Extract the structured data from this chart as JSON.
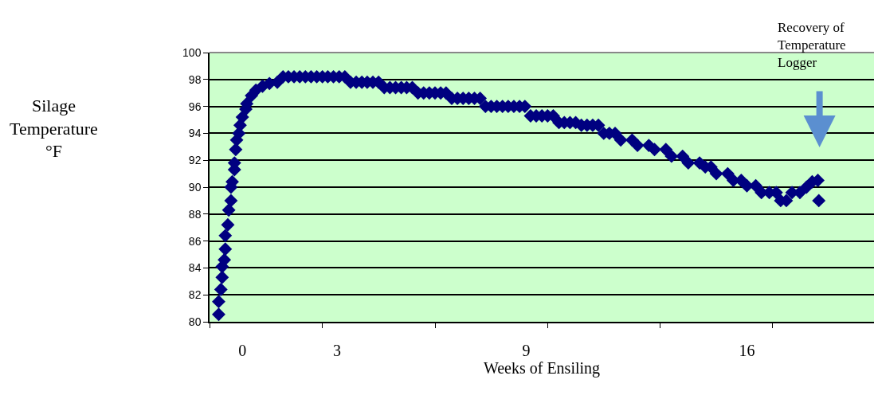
{
  "chart_data": {
    "type": "scatter",
    "xlabel": "Weeks of Ensiling",
    "ylabel": "Silage\nTemperature\n°F",
    "annotations": [
      "Recovery of\nTemperature\nLogger"
    ],
    "series": [
      {
        "color": "#000080",
        "x": [
          -0.75,
          -0.75,
          -0.68,
          -0.64,
          -0.64,
          -0.57,
          -0.54,
          -0.54,
          -0.46,
          -0.43,
          -0.36,
          -0.36,
          -0.32,
          -0.25,
          -0.25,
          -0.21,
          -0.18,
          -0.11,
          -0.07,
          0.0,
          0.11,
          0.14,
          0.29,
          0.43,
          0.64,
          0.86,
          1.11,
          1.29,
          1.46,
          1.64,
          1.82,
          2.0,
          2.18,
          2.36,
          2.54,
          2.71,
          2.89,
          3.07,
          3.25,
          3.43,
          3.61,
          3.79,
          3.96,
          4.14,
          4.32,
          4.5,
          4.68,
          4.86,
          5.04,
          5.21,
          5.39,
          5.57,
          5.75,
          5.93,
          6.11,
          6.29,
          6.46,
          6.64,
          6.82,
          7.0,
          7.18,
          7.36,
          7.54,
          7.71,
          7.89,
          8.07,
          8.25,
          8.43,
          8.61,
          8.79,
          8.96,
          9.14,
          9.32,
          9.5,
          9.68,
          9.86,
          10.04,
          10.21,
          10.39,
          10.57,
          10.75,
          10.93,
          11.11,
          11.29,
          11.46,
          11.64,
          11.82,
          12.0,
          12.36,
          12.53,
          12.89,
          13.07,
          13.43,
          13.61,
          13.96,
          14.14,
          14.5,
          14.68,
          14.86,
          15.03,
          15.39,
          15.57,
          15.82,
          16.0,
          16.28,
          16.46,
          16.71,
          16.93,
          17.07,
          17.25,
          17.43,
          17.68,
          17.89,
          18.07,
          18.25,
          18.28
        ],
        "values": [
          80.55,
          81.5,
          82.4,
          83.3,
          84.1,
          84.6,
          85.4,
          86.4,
          87.2,
          88.3,
          89.0,
          90.0,
          90.4,
          91.3,
          91.8,
          92.8,
          93.5,
          94.0,
          94.6,
          95.2,
          95.8,
          96.2,
          96.8,
          97.2,
          97.5,
          97.7,
          97.8,
          98.2,
          98.2,
          98.2,
          98.2,
          98.2,
          98.2,
          98.2,
          98.2,
          98.2,
          98.2,
          98.2,
          98.2,
          97.8,
          97.8,
          97.8,
          97.8,
          97.8,
          97.8,
          97.4,
          97.4,
          97.4,
          97.4,
          97.4,
          97.4,
          97.0,
          97.0,
          97.0,
          97.0,
          97.0,
          97.0,
          96.6,
          96.6,
          96.6,
          96.6,
          96.6,
          96.6,
          96.0,
          96.0,
          96.0,
          96.0,
          96.0,
          96.0,
          96.0,
          96.0,
          95.3,
          95.3,
          95.3,
          95.3,
          95.3,
          94.8,
          94.8,
          94.8,
          94.8,
          94.6,
          94.6,
          94.6,
          94.6,
          94.0,
          94.0,
          94.0,
          93.5,
          93.5,
          93.1,
          93.1,
          92.8,
          92.8,
          92.3,
          92.3,
          91.8,
          91.8,
          91.5,
          91.5,
          91.0,
          91.0,
          90.5,
          90.5,
          90.1,
          90.1,
          89.6,
          89.6,
          89.6,
          89.0,
          89.0,
          89.6,
          89.6,
          90.0,
          90.4,
          90.5,
          89.0
        ]
      }
    ],
    "xlim": [
      -1.04,
      20.03
    ],
    "xticks": [
      {
        "value": -1.04,
        "label": null
      },
      {
        "value": 2.54,
        "label": null
      },
      {
        "value": 6.11,
        "label": null
      },
      {
        "value": 9.68,
        "label": null
      },
      {
        "value": 13.25,
        "label": null
      },
      {
        "value": 16.82,
        "label": null
      },
      0,
      3,
      9,
      16
    ],
    "ylim": [
      80,
      100
    ],
    "yticks": [
      80,
      82,
      84,
      86,
      88,
      90,
      92,
      94,
      96,
      98,
      100
    ],
    "grid": "y",
    "marker": "diamond"
  }
}
